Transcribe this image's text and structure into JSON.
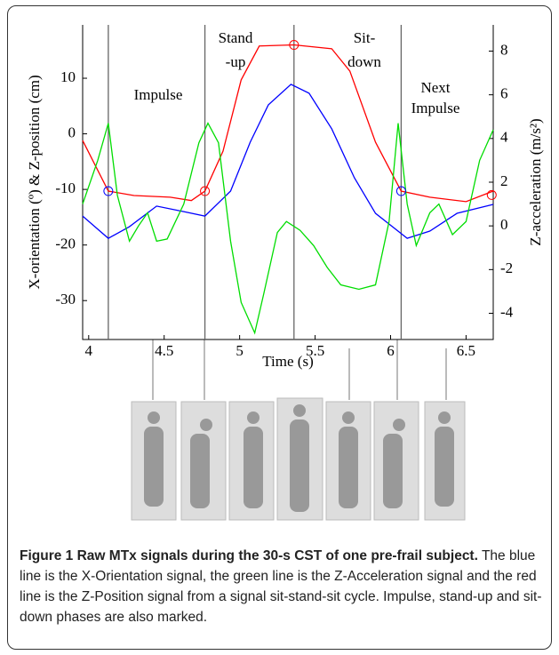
{
  "chart_data": {
    "type": "line",
    "xlabel": "Time  (s)",
    "ylabel": "X-orientation (º) & Z-position (cm)",
    "y2label": "Z-acceleration (m/s²)",
    "xlim": [
      3.96,
      6.68
    ],
    "xticks": [
      4,
      4.5,
      5,
      5.5,
      6,
      6.5
    ],
    "ylim": [
      -37,
      19.6
    ],
    "yticks": [
      10,
      0,
      -10,
      -20,
      -30
    ],
    "y2lim": [
      -5.2,
      9.2
    ],
    "y2ticks": [
      8,
      6,
      4,
      2,
      0,
      -2,
      -4
    ],
    "series": [
      {
        "color": "#ff0000",
        "axis": "y",
        "x": [
          3.96,
          4.13,
          4.3,
          4.54,
          4.68,
          4.77,
          4.89,
          5.01,
          5.13,
          5.36,
          5.61,
          5.73,
          5.9,
          6.07,
          6.26,
          6.5,
          6.68
        ],
        "values": [
          -1.2,
          -10.3,
          -11.1,
          -11.4,
          -12,
          -10.3,
          -3.1,
          9.7,
          15.8,
          16,
          15.3,
          11.3,
          -1.5,
          -10.3,
          -11.4,
          -12.2,
          -10.3
        ]
      },
      {
        "color": "#0000ff",
        "axis": "y",
        "x": [
          3.96,
          4.13,
          4.27,
          4.45,
          4.63,
          4.77,
          4.94,
          5.07,
          5.19,
          5.34,
          5.46,
          5.61,
          5.76,
          5.9,
          6.11,
          6.26,
          6.44,
          6.68
        ],
        "values": [
          -14.8,
          -18.8,
          -16.7,
          -13,
          -14,
          -14.8,
          -10.3,
          -1.5,
          5.2,
          8.9,
          7.3,
          0.9,
          -7.9,
          -14.3,
          -18.8,
          -17.5,
          -14.3,
          -12.7
        ]
      },
      {
        "color": "#00dd00",
        "axis": "y2",
        "x": [
          3.96,
          4.06,
          4.13,
          4.19,
          4.27,
          4.33,
          4.39,
          4.45,
          4.52,
          4.63,
          4.73,
          4.79,
          4.86,
          4.94,
          5.01,
          5.1,
          5.16,
          5.25,
          5.31,
          5.4,
          5.49,
          5.58,
          5.67,
          5.79,
          5.9,
          5.99,
          6.05,
          6.11,
          6.17,
          6.26,
          6.32,
          6.41,
          6.5,
          6.59,
          6.68
        ],
        "values": [
          1,
          3,
          4.7,
          1.4,
          -0.7,
          0,
          0.6,
          -0.7,
          -0.6,
          1,
          3.8,
          4.7,
          3.8,
          -0.7,
          -3.5,
          -4.9,
          -3.1,
          -0.3,
          0.2,
          -0.2,
          -0.9,
          -1.9,
          -2.7,
          -2.9,
          -2.7,
          0.2,
          4.7,
          1,
          -0.9,
          0.6,
          1,
          -0.4,
          0.2,
          3,
          4.4
        ]
      }
    ],
    "event_lines": [
      4.13,
      4.77,
      5.36,
      6.07
    ],
    "event_points": [
      {
        "x": 4.13,
        "y": -10.3,
        "color": "#0000ff"
      },
      {
        "x": 4.77,
        "y": -10.3,
        "color": "#ff0000"
      },
      {
        "x": 5.36,
        "y": 16,
        "color": "#ff0000"
      },
      {
        "x": 6.07,
        "y": -10.3,
        "color": "#0000ff"
      },
      {
        "x": 6.67,
        "y": -11,
        "color": "#ff0000"
      }
    ],
    "annotations": [
      "Impulse",
      "Stand",
      "-up",
      "Sit-",
      "down",
      "Next",
      "Impulse"
    ]
  },
  "caption": {
    "label": "Figure 1",
    "title": "Raw MTx signals during the 30-s CST of one pre-frail subject.",
    "text": "The blue line is the X-Orientation signal, the green line is the Z-Acceleration signal and the red line is the Z-Position signal from a signal sit-stand-sit cycle. Impulse, stand-up and sit-down phases are also marked."
  }
}
